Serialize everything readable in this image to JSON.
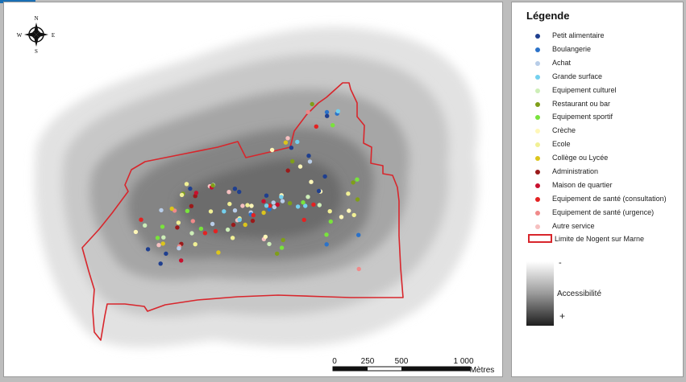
{
  "legend": {
    "title": "Légende",
    "items": [
      {
        "label": "Petit alimentaire",
        "color": "#1f3f8f"
      },
      {
        "label": "Boulangerie",
        "color": "#2b72c9"
      },
      {
        "label": "Achat",
        "color": "#b8cde8"
      },
      {
        "label": "Grande surface",
        "color": "#74d0ee"
      },
      {
        "label": "Equipement culturel",
        "color": "#cdeeb7"
      },
      {
        "label": "Restaurant ou bar",
        "color": "#7f9e19"
      },
      {
        "label": "Equipement sportif",
        "color": "#79e33c"
      },
      {
        "label": "Crèche",
        "color": "#fff7b8"
      },
      {
        "label": "Ecole",
        "color": "#f1f095"
      },
      {
        "label": "Collège ou Lycée",
        "color": "#dcc51c"
      },
      {
        "label": "Administration",
        "color": "#9a1a1a"
      },
      {
        "label": "Maison de quartier",
        "color": "#c8102e"
      },
      {
        "label": "Equipement de santé (consultation)",
        "color": "#e32222"
      },
      {
        "label": "Equipement de santé (urgence)",
        "color": "#f08a8a"
      },
      {
        "label": "Autre service",
        "color": "#f6c0c0"
      }
    ],
    "boundary_label": "Limite de Nogent sur Marne",
    "boundary_color": "#d8262c",
    "accessibility": {
      "title": "Accessibilité",
      "min_label": "-",
      "max_label": "+"
    }
  },
  "compass": {
    "n": "N",
    "s": "S",
    "e": "E",
    "w": "W"
  },
  "scale_bar": {
    "ticks": [
      "0",
      "250",
      "500",
      "1 000"
    ],
    "unit": "Mètres"
  }
}
